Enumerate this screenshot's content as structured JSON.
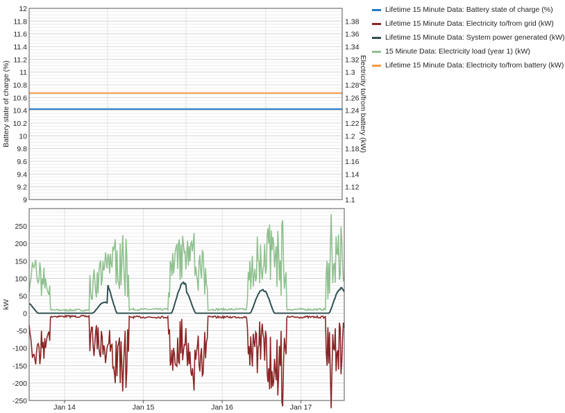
{
  "legend": [
    {
      "label": "Lifetime 15 Minute Data: Battery state of charge (%)",
      "color": "#1f78c8"
    },
    {
      "label": "Lifetime 15 Minute Data: Electricity to/from grid (kW)",
      "color": "#8b2525"
    },
    {
      "label": "Lifetime 15 Minute Data: System power generated (kW)",
      "color": "#2f4f4f"
    },
    {
      "label": "15 Minute Data: Electricity load (year 1) (kW)",
      "color": "#8fc08f"
    },
    {
      "label": "Lifetime 15 Minute Data: Electricity to/from battery (kW)",
      "color": "#f59a45"
    }
  ],
  "chart_data": [
    {
      "type": "line",
      "ylabel": "Battery state of charge (%)",
      "y2label": "Electricity to/from battery (kW)",
      "ylim": [
        9,
        12
      ],
      "y2lim": [
        1.1,
        1.4
      ],
      "yticks": [
        "9",
        "9.2",
        "9.4",
        "9.6",
        "9.8",
        "10",
        "10.2",
        "10.4",
        "10.6",
        "10.8",
        "11",
        "11.2",
        "11.4",
        "11.6",
        "11.8",
        "12"
      ],
      "y2ticks": [
        "1.1",
        "1.12",
        "1.14",
        "1.16",
        "1.18",
        "1.2",
        "1.22",
        "1.24",
        "1.26",
        "1.28",
        "1.3",
        "1.32",
        "1.34",
        "1.36",
        "1.38"
      ],
      "grid": true,
      "series": [
        {
          "name": "Lifetime 15 Minute Data: Battery state of charge (%)",
          "axis": "left",
          "color": "#1f78c8",
          "constant": 10.42
        },
        {
          "name": "Lifetime 15 Minute Data: Electricity to/from battery (kW)",
          "axis": "right",
          "color": "#f59a45",
          "constant": 1.267
        }
      ]
    },
    {
      "type": "line",
      "ylabel": "kW",
      "ylim": [
        -250,
        300
      ],
      "yticks": [
        "-250",
        "-200",
        "-150",
        "-100",
        "-50",
        "0",
        "50",
        "100",
        "150",
        "200",
        "250"
      ],
      "xticklabels": [
        "Jan 14",
        "Jan 15",
        "Jan 16",
        "Jan 17"
      ],
      "xrange_days": [
        13.55,
        17.55
      ],
      "grid": true,
      "series": [
        {
          "name": "15 Minute Data: Electricity load (year 1) (kW)",
          "color": "#8fc08f",
          "daily": [
            {
              "start": 13.55,
              "base": 6,
              "peak": 175,
              "mean": 95
            },
            {
              "start": 14.55,
              "base": 8,
              "peak": 245,
              "mean": 135
            },
            {
              "start": 15.55,
              "base": 8,
              "peak": 235,
              "mean": 125
            },
            {
              "start": 16.55,
              "base": 8,
              "peak": 285,
              "mean": 150
            }
          ]
        },
        {
          "name": "Lifetime 15 Minute Data: System power generated (kW)",
          "color": "#2f4f4f",
          "daily_peaks": [
            32,
            88,
            68,
            72
          ]
        },
        {
          "name": "Lifetime 15 Minute Data: Electricity to/from grid (kW)",
          "color": "#8b2525",
          "daily": [
            {
              "base": -5,
              "trough": -175,
              "mean": -85
            },
            {
              "base": -5,
              "trough": -230,
              "mean": -115
            },
            {
              "base": -5,
              "trough": -220,
              "mean": -115
            },
            {
              "base": -5,
              "trough": -245,
              "mean": -125
            }
          ]
        }
      ]
    }
  ]
}
